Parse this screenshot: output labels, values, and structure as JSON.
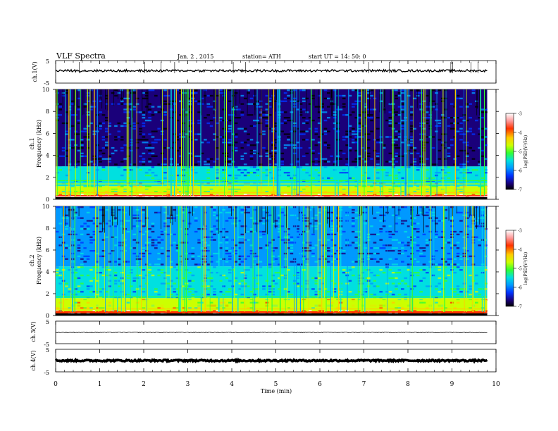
{
  "header": {
    "title": "VLF  Spectra",
    "date": "Jan. 2  , 2015",
    "station": "station= ATH",
    "start": "start  UT =   14: 50: 0"
  },
  "xaxis": {
    "label": "Time  (min)",
    "ticks": [
      "0",
      "1",
      "2",
      "3",
      "4",
      "5",
      "6",
      "7",
      "8",
      "9",
      "10"
    ],
    "range": [
      0,
      10
    ]
  },
  "colorbar": {
    "label": "log(PSD(V²/Hz)",
    "ticks": [
      "-3",
      "-4",
      "-5",
      "-6",
      "-7"
    ],
    "range": [
      -7,
      -3
    ]
  },
  "panels": {
    "ch1_wave": {
      "ylabel": "ch.1(V)",
      "ticks": [
        "5",
        "-5"
      ],
      "range": [
        -5,
        5
      ]
    },
    "ch1_spec": {
      "ylabel_top": "ch.1",
      "ylabel_bottom": "Frequency  (kHz)",
      "ticks": [
        "10",
        "8",
        "6",
        "4",
        "2",
        "0"
      ],
      "range": [
        0,
        10
      ]
    },
    "ch2_spec": {
      "ylabel_top": "ch.2",
      "ylabel_bottom": "Frequency  (kHz)",
      "ticks": [
        "10",
        "8",
        "6",
        "4",
        "2",
        "0"
      ],
      "range": [
        0,
        10
      ]
    },
    "ch3_wave": {
      "ylabel": "ch.3(V)",
      "ticks": [
        "5",
        "-5"
      ],
      "range": [
        -5,
        5
      ]
    },
    "ch4_wave": {
      "ylabel": "ch.4(V)",
      "ticks": [
        "5",
        "-5"
      ],
      "range": [
        -5,
        5
      ]
    }
  },
  "colors": {
    "spectrum_scale": [
      "#000000",
      "#1a007a",
      "#0033ff",
      "#0099ff",
      "#00e0e0",
      "#33ff33",
      "#ccff00",
      "#ffcc00",
      "#ff3300",
      "#ff9999",
      "#ffffff"
    ]
  },
  "chart_data": [
    {
      "type": "line",
      "title": "VLF  Spectra",
      "panel": "ch.1(V)",
      "x_range": [
        0,
        9.8
      ],
      "ylim": [
        -5,
        5
      ],
      "baseline": 0.5,
      "noise_amplitude": 1.0,
      "xlabel": "Time  (min)",
      "ylabel": "ch.1(V)"
    },
    {
      "type": "heatmap",
      "panel": "ch.1 Frequency (kHz)",
      "x_range": [
        0,
        9.8
      ],
      "ylim": [
        0,
        10
      ],
      "zlim": [
        -7,
        -3
      ],
      "bands": [
        {
          "f_khz": [
            0,
            0.4
          ],
          "log_psd": -3.5
        },
        {
          "f_khz": [
            0.4,
            1.2
          ],
          "log_psd": -4.8
        },
        {
          "f_khz": [
            1.2,
            3.0
          ],
          "log_psd": -5.6
        },
        {
          "f_khz": [
            3.0,
            10
          ],
          "log_psd": -6.5
        }
      ],
      "xlabel": "Time  (min)",
      "ylabel": "Frequency  (kHz)"
    },
    {
      "type": "heatmap",
      "panel": "ch.2 Frequency (kHz)",
      "x_range": [
        0,
        9.8
      ],
      "ylim": [
        0,
        10
      ],
      "zlim": [
        -7,
        -3
      ],
      "bands": [
        {
          "f_khz": [
            0,
            0.4
          ],
          "log_psd": -3.8
        },
        {
          "f_khz": [
            0.4,
            1.6
          ],
          "log_psd": -4.6
        },
        {
          "f_khz": [
            1.6,
            4.5
          ],
          "log_psd": -5.4
        },
        {
          "f_khz": [
            4.5,
            10
          ],
          "log_psd": -6.0
        }
      ],
      "xlabel": "Time  (min)",
      "ylabel": "Frequency  (kHz)"
    },
    {
      "type": "line",
      "panel": "ch.3(V)",
      "x_range": [
        0,
        9.8
      ],
      "ylim": [
        -5,
        5
      ],
      "baseline": 0,
      "noise_amplitude": 0.4,
      "xlabel": "Time  (min)",
      "ylabel": "ch.3(V)"
    },
    {
      "type": "line",
      "panel": "ch.4(V)",
      "x_range": [
        0,
        9.8
      ],
      "ylim": [
        -5,
        5
      ],
      "baseline": 0,
      "noise_amplitude": 0.7,
      "xlabel": "Time  (min)",
      "ylabel": "ch.4(V)"
    }
  ]
}
